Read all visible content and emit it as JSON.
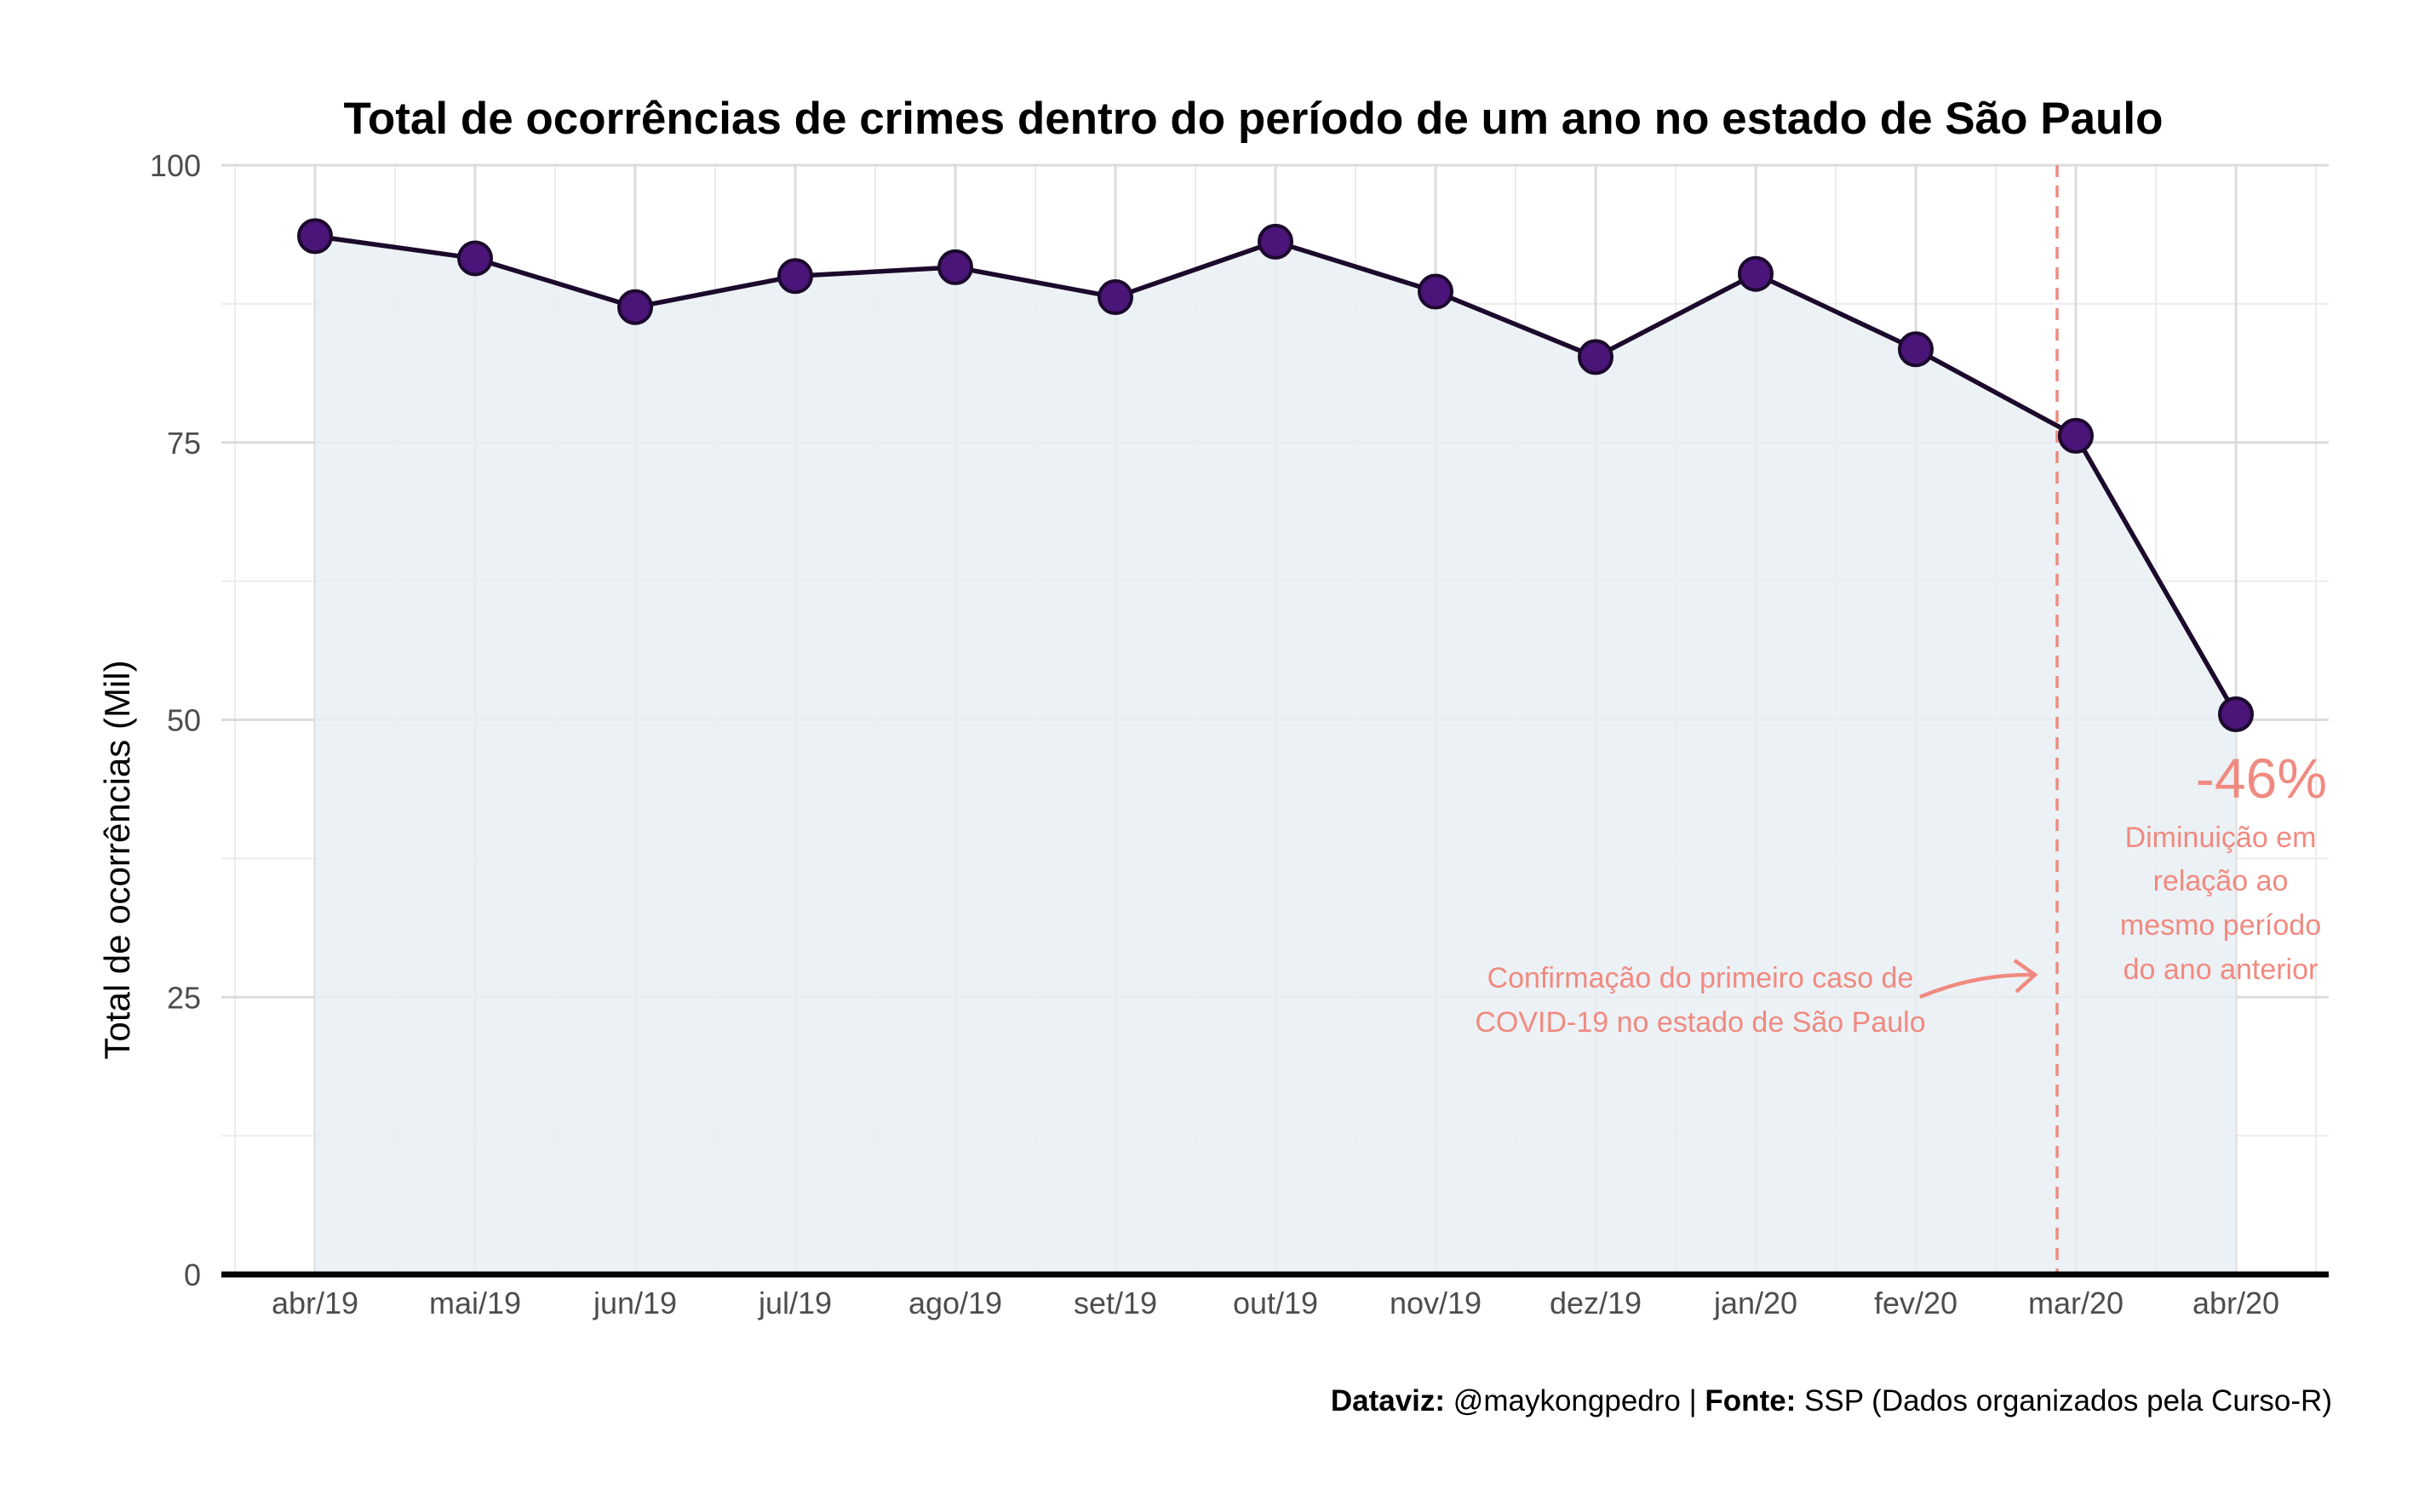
{
  "chart_data": {
    "type": "area",
    "title": "Total de ocorrências de crimes dentro do período de um ano no estado de São Paulo",
    "xlabel": "",
    "ylabel": "Total de ocorrências (Mil)",
    "categories": [
      "abr/19",
      "mai/19",
      "jun/19",
      "jul/19",
      "ago/19",
      "set/19",
      "out/19",
      "nov/19",
      "dez/19",
      "jan/20",
      "fev/20",
      "mar/20",
      "abr/20"
    ],
    "values": [
      93.6,
      91.6,
      87.2,
      90.0,
      90.8,
      88.1,
      93.1,
      88.6,
      82.7,
      90.2,
      83.4,
      75.6,
      50.5
    ],
    "ylim": [
      0,
      100
    ],
    "yticks": [
      0,
      25,
      50,
      75,
      100
    ],
    "grid": true,
    "colors": {
      "line": "#1b0a2b",
      "point": "#4a1479",
      "area": "#e9eef3",
      "grid_major": "#dcdcdc",
      "grid_minor": "#ececec",
      "annotation": "#f08a80",
      "axis": "#000000"
    },
    "annotations": {
      "vline_category": "mar/20",
      "covid_text_line1": "Confirmação do primeiro caso de",
      "covid_text_line2": "COVID-19 no estado de São Paulo",
      "percent": "-46%",
      "decrease_line1": "Diminuição em",
      "decrease_line2": "relação ao",
      "decrease_line3": "mesmo período",
      "decrease_line4": "do ano anterior"
    }
  },
  "caption": {
    "dataviz_label": "Dataviz:",
    "dataviz_value": " @maykongpedro | ",
    "source_label": "Fonte:",
    "source_value": " SSP (Dados organizados pela Curso-R)"
  }
}
